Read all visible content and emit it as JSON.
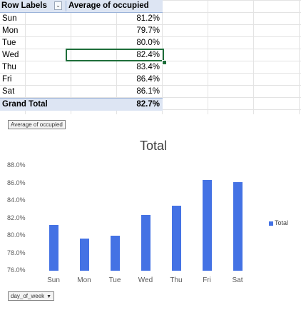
{
  "pivot": {
    "header": {
      "row_labels": "Row Labels",
      "value_header": "Average of occupied"
    },
    "rows": [
      {
        "label": "Sun",
        "value": "81.2%"
      },
      {
        "label": "Mon",
        "value": "79.7%"
      },
      {
        "label": "Tue",
        "value": "80.0%"
      },
      {
        "label": "Wed",
        "value": "82.4%"
      },
      {
        "label": "Thu",
        "value": "83.4%"
      },
      {
        "label": "Fri",
        "value": "86.4%"
      },
      {
        "label": "Sat",
        "value": "86.1%"
      }
    ],
    "grand_total": {
      "label": "Grand Total",
      "value": "82.7%"
    }
  },
  "chart": {
    "value_field_button": "Average of occupied",
    "axis_field_button": "day_of_week",
    "legend_label": "Total"
  },
  "chart_data": {
    "type": "bar",
    "title": "Total",
    "categories": [
      "Sun",
      "Mon",
      "Tue",
      "Wed",
      "Thu",
      "Fri",
      "Sat"
    ],
    "series": [
      {
        "name": "Total",
        "values": [
          81.2,
          79.7,
          80.0,
          82.4,
          83.4,
          86.4,
          86.1
        ]
      }
    ],
    "ylim": [
      76,
      88
    ],
    "yticks": [
      "76.0%",
      "78.0%",
      "80.0%",
      "82.0%",
      "84.0%",
      "86.0%",
      "88.0%"
    ],
    "xlabel": "",
    "ylabel": "",
    "grid": false,
    "legend": "right",
    "color": "#4472e4"
  }
}
